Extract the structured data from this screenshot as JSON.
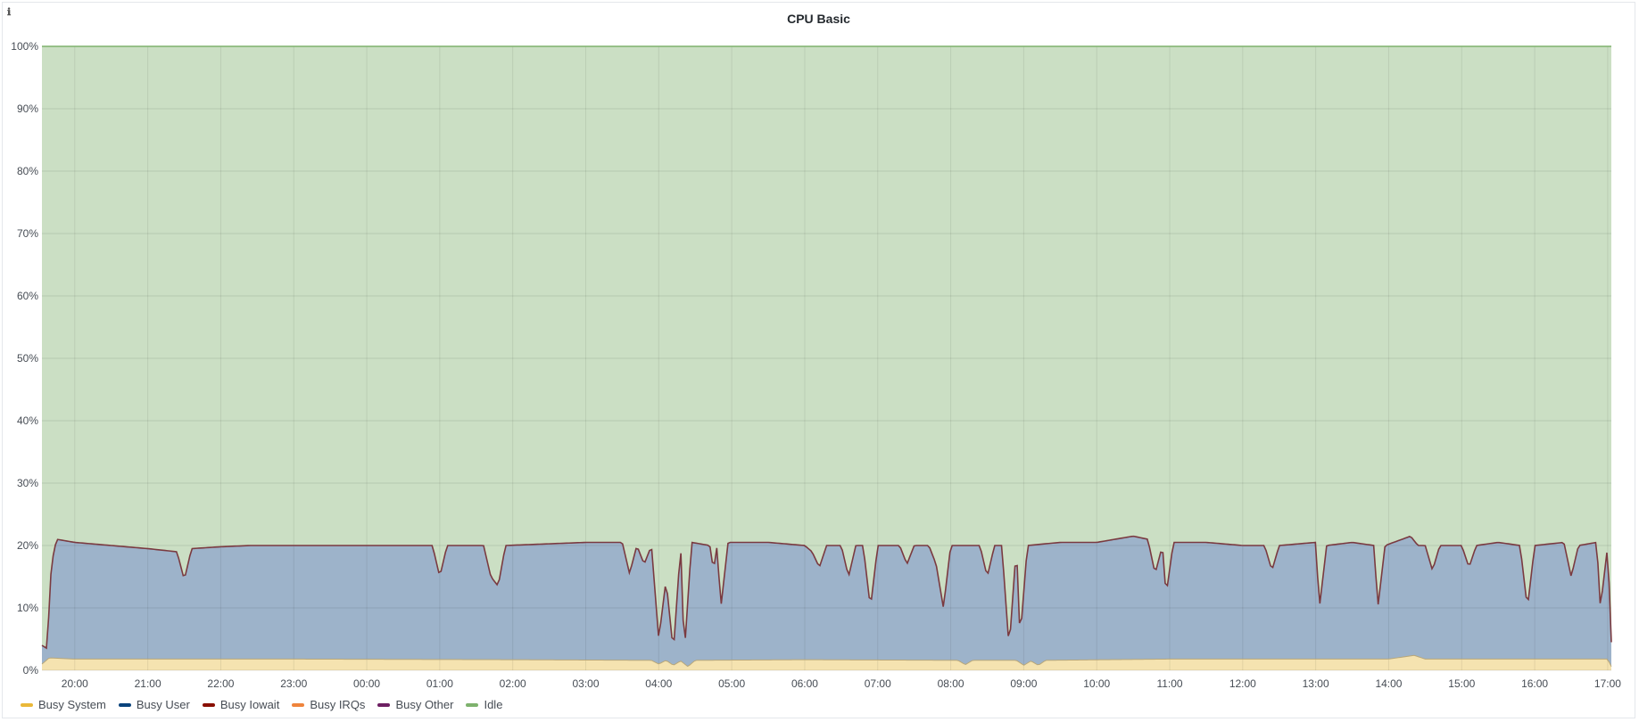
{
  "panel": {
    "title": "CPU Basic",
    "info_icon": "info-icon"
  },
  "chart_data": {
    "type": "area",
    "stacked": true,
    "title": "CPU Basic",
    "y_unit": "%",
    "ylim": [
      0,
      100
    ],
    "y_ticks": [
      "0%",
      "10%",
      "20%",
      "30%",
      "40%",
      "50%",
      "60%",
      "70%",
      "80%",
      "90%",
      "100%"
    ],
    "x_ticks": [
      "20:00",
      "21:00",
      "22:00",
      "23:00",
      "00:00",
      "01:00",
      "02:00",
      "03:00",
      "04:00",
      "05:00",
      "06:00",
      "07:00",
      "08:00",
      "09:00",
      "10:00",
      "11:00",
      "12:00",
      "13:00",
      "14:00",
      "15:00",
      "16:00",
      "17:00"
    ],
    "x_range_hours": [
      -0.45,
      21.05
    ],
    "grid": true,
    "legend_position": "bottom-left",
    "series": [
      {
        "name": "Busy System",
        "color": "#EAB839"
      },
      {
        "name": "Busy User",
        "color": "#0A437C"
      },
      {
        "name": "Busy Iowait",
        "color": "#890F02"
      },
      {
        "name": "Busy IRQs",
        "color": "#EF843C"
      },
      {
        "name": "Busy Other",
        "color": "#6D1F62"
      },
      {
        "name": "Idle",
        "color": "#7EB26D"
      }
    ],
    "system_points": [
      [
        -0.45,
        1.0
      ],
      [
        -0.35,
        2.0
      ],
      [
        0,
        1.8
      ],
      [
        3,
        1.8
      ],
      [
        6,
        1.7
      ],
      [
        7.9,
        1.6
      ],
      [
        8.0,
        1.0
      ],
      [
        8.1,
        1.6
      ],
      [
        8.2,
        0.8
      ],
      [
        8.3,
        1.5
      ],
      [
        8.4,
        0.6
      ],
      [
        8.5,
        1.6
      ],
      [
        10,
        1.7
      ],
      [
        12.1,
        1.6
      ],
      [
        12.2,
        0.9
      ],
      [
        12.3,
        1.6
      ],
      [
        12.9,
        1.6
      ],
      [
        13.0,
        0.8
      ],
      [
        13.1,
        1.5
      ],
      [
        13.2,
        0.8
      ],
      [
        13.3,
        1.6
      ],
      [
        15,
        1.8
      ],
      [
        18,
        1.8
      ],
      [
        18.35,
        2.4
      ],
      [
        18.5,
        1.8
      ],
      [
        21,
        1.8
      ],
      [
        21.05,
        0.6
      ]
    ],
    "busy_total_points": [
      [
        -0.45,
        4.0
      ],
      [
        -0.38,
        3.5
      ],
      [
        -0.32,
        17.0
      ],
      [
        -0.25,
        21.0
      ],
      [
        0,
        20.5
      ],
      [
        0.5,
        20.0
      ],
      [
        1,
        19.5
      ],
      [
        1.4,
        19.0
      ],
      [
        1.5,
        14.5
      ],
      [
        1.6,
        19.5
      ],
      [
        2,
        19.8
      ],
      [
        2.4,
        20.0
      ],
      [
        3,
        20.0
      ],
      [
        4,
        20.0
      ],
      [
        4.9,
        20.0
      ],
      [
        5,
        15.0
      ],
      [
        5.1,
        20.0
      ],
      [
        5.6,
        20.0
      ],
      [
        5.7,
        15.0
      ],
      [
        5.8,
        13.5
      ],
      [
        5.9,
        20.0
      ],
      [
        7,
        20.5
      ],
      [
        7.5,
        20.5
      ],
      [
        7.6,
        15.5
      ],
      [
        7.7,
        20.0
      ],
      [
        7.8,
        17.0
      ],
      [
        7.9,
        20.0
      ],
      [
        8.0,
        5.0
      ],
      [
        8.1,
        14.5
      ],
      [
        8.2,
        3.0
      ],
      [
        8.3,
        20.0
      ],
      [
        8.35,
        2.5
      ],
      [
        8.45,
        20.5
      ],
      [
        8.7,
        20.0
      ],
      [
        8.75,
        16.0
      ],
      [
        8.8,
        20.0
      ],
      [
        8.85,
        10.0
      ],
      [
        8.95,
        20.5
      ],
      [
        9.5,
        20.5
      ],
      [
        10,
        20.0
      ],
      [
        10.1,
        19.0
      ],
      [
        10.2,
        16.5
      ],
      [
        10.3,
        20.0
      ],
      [
        10.5,
        20.0
      ],
      [
        10.6,
        15.0
      ],
      [
        10.7,
        20.0
      ],
      [
        10.8,
        20.0
      ],
      [
        10.9,
        10.0
      ],
      [
        11.0,
        20.0
      ],
      [
        11.3,
        20.0
      ],
      [
        11.4,
        17.0
      ],
      [
        11.5,
        20.0
      ],
      [
        11.7,
        20.0
      ],
      [
        11.8,
        17.0
      ],
      [
        11.9,
        10.0
      ],
      [
        12.0,
        20.0
      ],
      [
        12.4,
        20.0
      ],
      [
        12.5,
        15.0
      ],
      [
        12.6,
        20.0
      ],
      [
        12.7,
        20.0
      ],
      [
        12.8,
        3.5
      ],
      [
        12.9,
        20.0
      ],
      [
        12.95,
        5.0
      ],
      [
        13.05,
        20.0
      ],
      [
        13.5,
        20.5
      ],
      [
        14,
        20.5
      ],
      [
        14.5,
        21.5
      ],
      [
        14.7,
        21.0
      ],
      [
        14.8,
        15.5
      ],
      [
        14.9,
        20.0
      ],
      [
        14.95,
        12.0
      ],
      [
        15.05,
        20.5
      ],
      [
        15.5,
        20.5
      ],
      [
        16,
        20.0
      ],
      [
        16.3,
        20.0
      ],
      [
        16.4,
        16.0
      ],
      [
        16.5,
        20.0
      ],
      [
        17.0,
        20.5
      ],
      [
        17.05,
        10.0
      ],
      [
        17.15,
        20.0
      ],
      [
        17.5,
        20.5
      ],
      [
        17.8,
        20.0
      ],
      [
        17.85,
        10.0
      ],
      [
        17.95,
        20.0
      ],
      [
        18.3,
        21.5
      ],
      [
        18.4,
        20.0
      ],
      [
        18.5,
        20.0
      ],
      [
        18.6,
        16.0
      ],
      [
        18.7,
        20.0
      ],
      [
        19.0,
        20.0
      ],
      [
        19.1,
        16.5
      ],
      [
        19.2,
        20.0
      ],
      [
        19.5,
        20.5
      ],
      [
        19.8,
        20.0
      ],
      [
        19.9,
        10.0
      ],
      [
        20.0,
        20.0
      ],
      [
        20.4,
        20.5
      ],
      [
        20.5,
        15.0
      ],
      [
        20.6,
        20.0
      ],
      [
        20.85,
        20.5
      ],
      [
        20.9,
        10.0
      ],
      [
        21.0,
        20.0
      ],
      [
        21.05,
        4.5
      ]
    ]
  },
  "legend": {
    "items": [
      {
        "label": "Busy System",
        "color": "#EAB839"
      },
      {
        "label": "Busy User",
        "color": "#0A437C"
      },
      {
        "label": "Busy Iowait",
        "color": "#890F02"
      },
      {
        "label": "Busy IRQs",
        "color": "#EF843C"
      },
      {
        "label": "Busy Other",
        "color": "#6D1F62"
      },
      {
        "label": "Idle",
        "color": "#7EB26D"
      }
    ]
  }
}
